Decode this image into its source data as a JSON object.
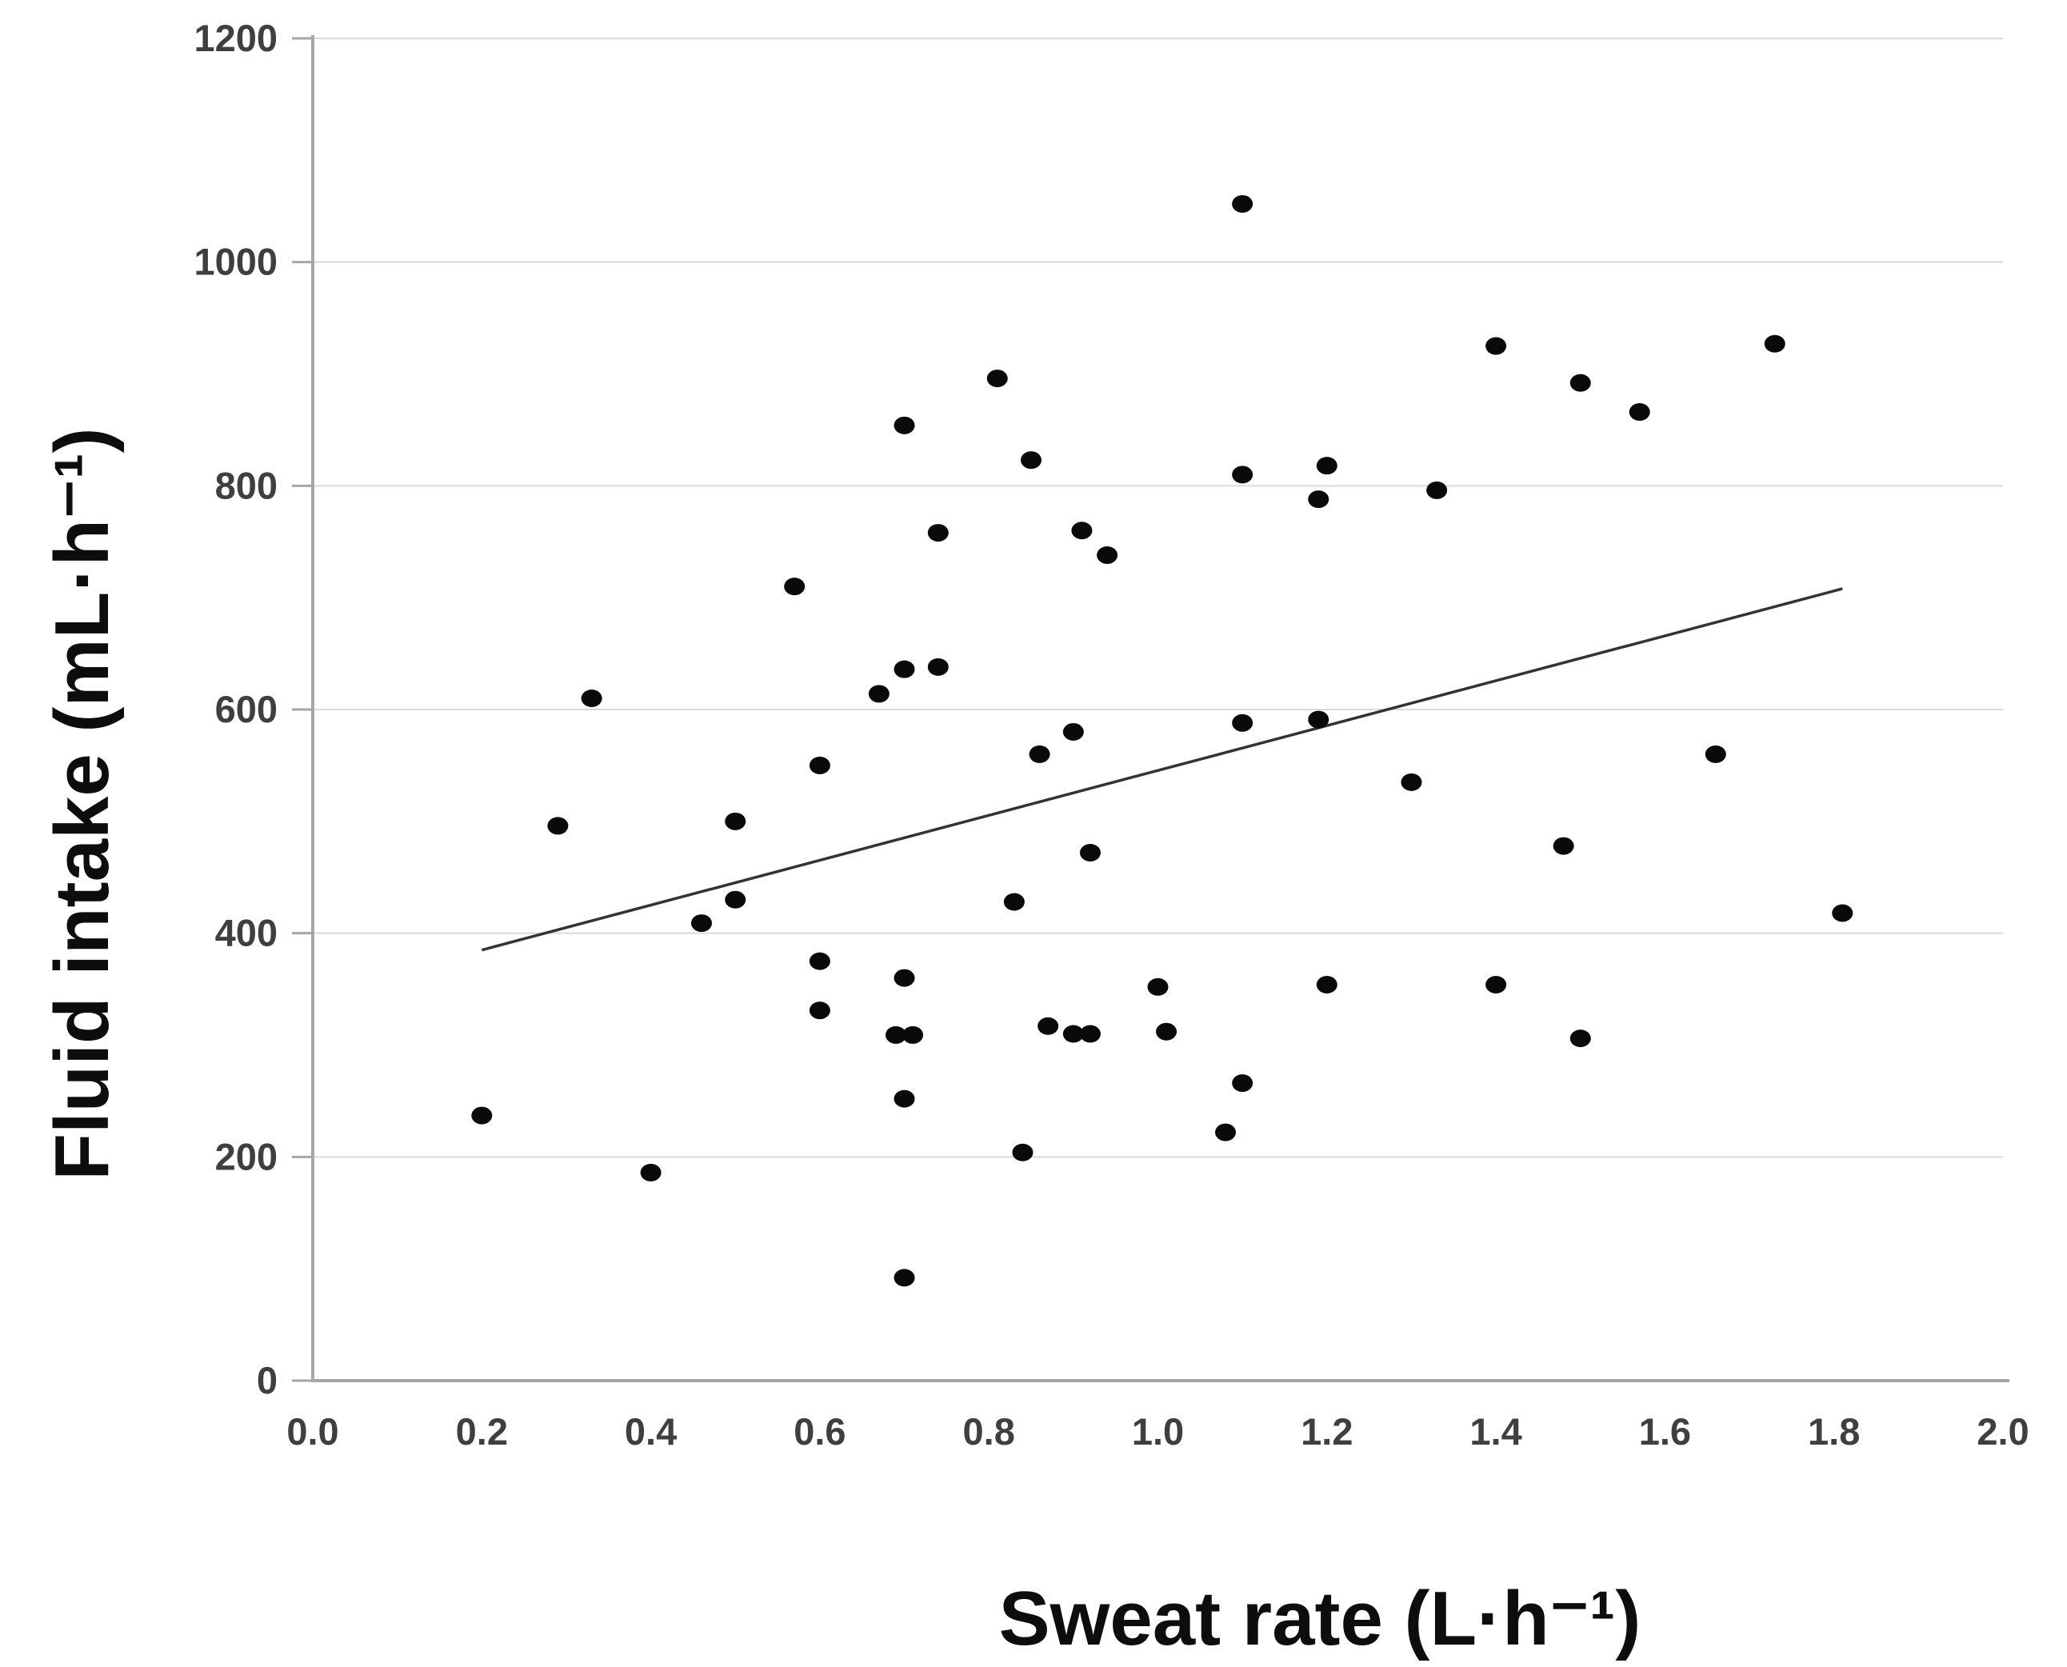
{
  "chart_data": {
    "type": "scatter",
    "title": "",
    "xlabel": "Sweat rate (L·h⁻¹)",
    "ylabel": "Fluid intake (mL·h⁻¹)",
    "xlim": [
      0.0,
      2.0
    ],
    "ylim": [
      0,
      1200
    ],
    "x_tick_values": [
      0.0,
      0.2,
      0.4,
      0.6,
      0.8,
      1.0,
      1.2,
      1.4,
      1.6,
      1.8,
      2.0
    ],
    "x_tick_labels": [
      "0.0",
      "0.2",
      "0.4",
      "0.6",
      "0.8",
      "1.0",
      "1.2",
      "1.4",
      "1.6",
      "1.8",
      "2.0"
    ],
    "y_tick_values": [
      0,
      200,
      400,
      600,
      800,
      1000,
      1200
    ],
    "y_tick_labels": [
      "0",
      "200",
      "400",
      "600",
      "800",
      "1000",
      "1200"
    ],
    "grid_y_values": [
      200,
      400,
      600,
      800,
      1000,
      1200
    ],
    "grid": "horizontal-only",
    "legend": "none",
    "marker": "filled-black-circle",
    "points": [
      {
        "x": 0.2,
        "y": 237
      },
      {
        "x": 0.29,
        "y": 496
      },
      {
        "x": 0.33,
        "y": 610
      },
      {
        "x": 0.4,
        "y": 186
      },
      {
        "x": 0.46,
        "y": 409
      },
      {
        "x": 0.5,
        "y": 500
      },
      {
        "x": 0.5,
        "y": 430
      },
      {
        "x": 0.57,
        "y": 710
      },
      {
        "x": 0.6,
        "y": 550
      },
      {
        "x": 0.6,
        "y": 375
      },
      {
        "x": 0.6,
        "y": 331
      },
      {
        "x": 0.67,
        "y": 614
      },
      {
        "x": 0.69,
        "y": 309
      },
      {
        "x": 0.7,
        "y": 854
      },
      {
        "x": 0.7,
        "y": 636
      },
      {
        "x": 0.7,
        "y": 360
      },
      {
        "x": 0.7,
        "y": 252
      },
      {
        "x": 0.7,
        "y": 92
      },
      {
        "x": 0.71,
        "y": 309
      },
      {
        "x": 0.74,
        "y": 758
      },
      {
        "x": 0.74,
        "y": 638
      },
      {
        "x": 0.81,
        "y": 896
      },
      {
        "x": 0.83,
        "y": 428
      },
      {
        "x": 0.84,
        "y": 204
      },
      {
        "x": 0.85,
        "y": 823
      },
      {
        "x": 0.86,
        "y": 560
      },
      {
        "x": 0.87,
        "y": 317
      },
      {
        "x": 0.9,
        "y": 580
      },
      {
        "x": 0.9,
        "y": 310
      },
      {
        "x": 0.91,
        "y": 760
      },
      {
        "x": 0.92,
        "y": 472
      },
      {
        "x": 0.92,
        "y": 310
      },
      {
        "x": 0.94,
        "y": 738
      },
      {
        "x": 1.0,
        "y": 352
      },
      {
        "x": 1.01,
        "y": 312
      },
      {
        "x": 1.08,
        "y": 222
      },
      {
        "x": 1.1,
        "y": 1052
      },
      {
        "x": 1.1,
        "y": 810
      },
      {
        "x": 1.1,
        "y": 588
      },
      {
        "x": 1.1,
        "y": 266
      },
      {
        "x": 1.19,
        "y": 788
      },
      {
        "x": 1.19,
        "y": 591
      },
      {
        "x": 1.2,
        "y": 818
      },
      {
        "x": 1.2,
        "y": 354
      },
      {
        "x": 1.3,
        "y": 535
      },
      {
        "x": 1.33,
        "y": 796
      },
      {
        "x": 1.4,
        "y": 925
      },
      {
        "x": 1.4,
        "y": 354
      },
      {
        "x": 1.48,
        "y": 478
      },
      {
        "x": 1.5,
        "y": 892
      },
      {
        "x": 1.5,
        "y": 306
      },
      {
        "x": 1.57,
        "y": 866
      },
      {
        "x": 1.66,
        "y": 560
      },
      {
        "x": 1.73,
        "y": 927
      },
      {
        "x": 1.81,
        "y": 418
      }
    ],
    "trendline": {
      "x1": 0.2,
      "y1": 385,
      "x2": 1.81,
      "y2": 708
    },
    "colors": {
      "background": "#ffffff",
      "point": "#0a0a0a",
      "trendline": "#333333",
      "gridline": "#d9d9d9",
      "axis": "#a6a6a6",
      "tick_label": "#3f3f3f",
      "axis_title": "#0d0d0d"
    }
  }
}
